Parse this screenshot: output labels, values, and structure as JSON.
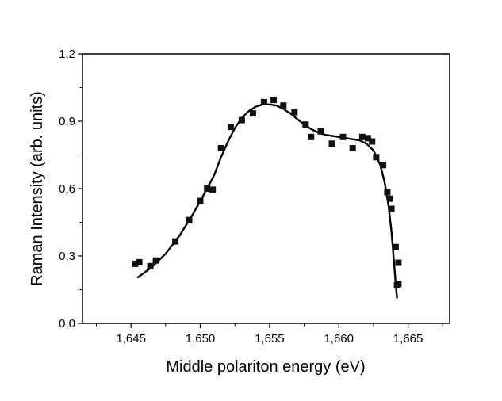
{
  "chart_data": {
    "type": "scatter",
    "title": "",
    "xlabel": "Middle polariton energy (eV)",
    "ylabel": "Raman Intensity (arb. units)",
    "xlim": [
      1.6415,
      1.668
    ],
    "ylim": [
      0.0,
      1.2
    ],
    "x_ticks": [
      1.645,
      1.65,
      1.655,
      1.66,
      1.665
    ],
    "x_tick_labels": [
      "1,645",
      "1,650",
      "1,655",
      "1,660",
      "1,665"
    ],
    "y_ticks": [
      0.0,
      0.3,
      0.6,
      0.9,
      1.2
    ],
    "y_tick_labels": [
      "0,0",
      "0,3",
      "0,6",
      "0,9",
      "1,2"
    ],
    "grid": false,
    "legend": "none",
    "colors": {
      "marker": "#111111",
      "line": "#000000"
    },
    "series": [
      {
        "kind": "points",
        "marker": "square",
        "x": [
          1.6453,
          1.6456,
          1.6464,
          1.6468,
          1.6482,
          1.6492,
          1.65,
          1.6505,
          1.6509,
          1.6515,
          1.6522,
          1.653,
          1.6538,
          1.6546,
          1.6553,
          1.656,
          1.6568,
          1.6576,
          1.658,
          1.6587,
          1.6595,
          1.6603,
          1.661,
          1.6617,
          1.6621,
          1.6624,
          1.6627,
          1.6632,
          1.6635,
          1.6637,
          1.6638,
          1.6641,
          1.6643,
          1.6643,
          1.6642
        ],
        "y": [
          0.265,
          0.272,
          0.255,
          0.28,
          0.365,
          0.46,
          0.545,
          0.6,
          0.595,
          0.78,
          0.875,
          0.905,
          0.935,
          0.985,
          0.995,
          0.97,
          0.94,
          0.885,
          0.83,
          0.855,
          0.8,
          0.83,
          0.78,
          0.83,
          0.825,
          0.81,
          0.74,
          0.705,
          0.585,
          0.555,
          0.51,
          0.34,
          0.27,
          0.175,
          0.17
        ]
      },
      {
        "kind": "line",
        "x": [
          1.6455,
          1.6465,
          1.6475,
          1.6485,
          1.6495,
          1.65,
          1.6505,
          1.651,
          1.6515,
          1.652,
          1.6525,
          1.653,
          1.6535,
          1.654,
          1.6545,
          1.655,
          1.6555,
          1.656,
          1.6565,
          1.657,
          1.6575,
          1.658,
          1.6585,
          1.659,
          1.6595,
          1.66,
          1.6605,
          1.661,
          1.6615,
          1.662,
          1.6625,
          1.663,
          1.6633,
          1.6636,
          1.6638,
          1.664,
          1.6641,
          1.6642
        ],
        "y": [
          0.205,
          0.25,
          0.31,
          0.39,
          0.49,
          0.545,
          0.6,
          0.66,
          0.74,
          0.81,
          0.87,
          0.915,
          0.945,
          0.965,
          0.975,
          0.975,
          0.97,
          0.955,
          0.935,
          0.91,
          0.885,
          0.865,
          0.85,
          0.84,
          0.835,
          0.83,
          0.825,
          0.82,
          0.815,
          0.8,
          0.77,
          0.705,
          0.63,
          0.52,
          0.41,
          0.26,
          0.18,
          0.115
        ]
      }
    ]
  }
}
